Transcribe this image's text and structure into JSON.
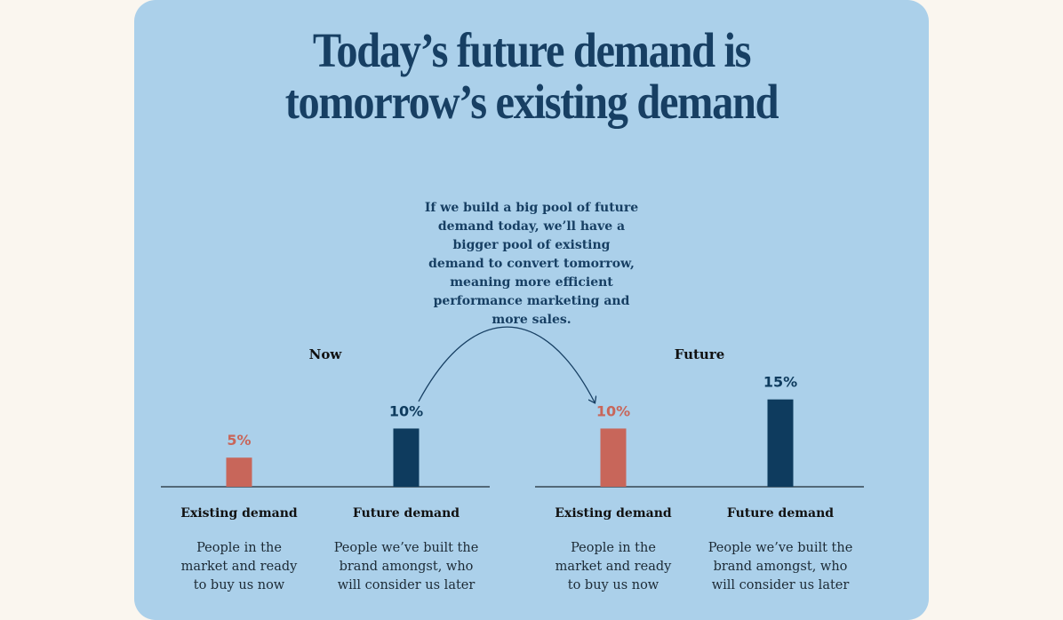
{
  "title": {
    "line1": "Today’s future demand is",
    "line2": "tomorrow’s existing demand"
  },
  "annotation": {
    "lines": [
      "If we build a big pool of future",
      "demand today, we’ll have a",
      "bigger pool of existing",
      "demand to convert tomorrow,",
      "meaning more efficient",
      "performance marketing and",
      "more sales."
    ]
  },
  "colors": {
    "background": "#abd0ea",
    "existing": "#c8665a",
    "future": "#0e3b5e",
    "text": "#173f63"
  },
  "chart_data": [
    {
      "type": "bar",
      "title": "Now",
      "categories": [
        "Existing demand",
        "Future demand"
      ],
      "values": [
        5,
        10
      ],
      "value_labels": [
        "5%",
        "10%"
      ],
      "descriptions": [
        [
          "People in the",
          "market and ready",
          "to buy us now"
        ],
        [
          "People we’ve built the",
          "brand amongst, who",
          "will consider us later"
        ]
      ],
      "ylim": [
        0,
        18
      ]
    },
    {
      "type": "bar",
      "title": "Future",
      "categories": [
        "Existing demand",
        "Future demand"
      ],
      "values": [
        10,
        15
      ],
      "value_labels": [
        "10%",
        "15%"
      ],
      "descriptions": [
        [
          "People in the",
          "market and ready",
          "to buy us now"
        ],
        [
          "People we’ve built the",
          "brand amongst, who",
          "will consider us later"
        ]
      ],
      "ylim": [
        0,
        18
      ]
    }
  ]
}
